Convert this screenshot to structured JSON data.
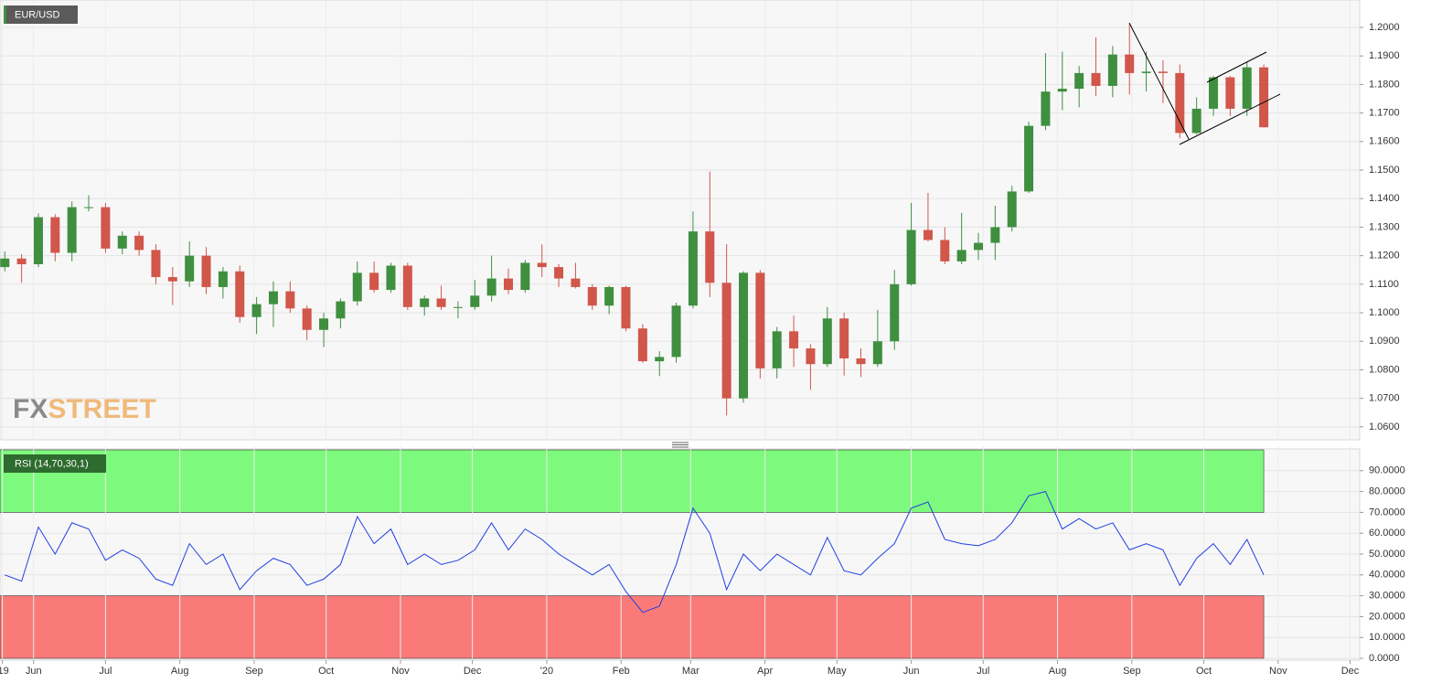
{
  "chart_data": [
    {
      "type": "candlestick",
      "title": "EUR/USD",
      "watermark": [
        "FX",
        "STREET"
      ],
      "x": [
        "2019-05-20",
        "2019-05-27",
        "2019-06-03",
        "2019-06-10",
        "2019-06-17",
        "2019-06-24",
        "2019-07-01",
        "2019-07-08",
        "2019-07-15",
        "2019-07-22",
        "2019-07-29",
        "2019-08-05",
        "2019-08-12",
        "2019-08-19",
        "2019-08-26",
        "2019-09-02",
        "2019-09-09",
        "2019-09-16",
        "2019-09-23",
        "2019-09-30",
        "2019-10-07",
        "2019-10-14",
        "2019-10-21",
        "2019-10-28",
        "2019-11-04",
        "2019-11-11",
        "2019-11-18",
        "2019-11-25",
        "2019-12-02",
        "2019-12-09",
        "2019-12-16",
        "2019-12-23",
        "2019-12-30",
        "2020-01-06",
        "2020-01-13",
        "2020-01-20",
        "2020-01-27",
        "2020-02-03",
        "2020-02-10",
        "2020-02-17",
        "2020-02-24",
        "2020-03-02",
        "2020-03-09",
        "2020-03-16",
        "2020-03-23",
        "2020-03-30",
        "2020-04-06",
        "2020-04-13",
        "2020-04-20",
        "2020-04-27",
        "2020-05-04",
        "2020-05-11",
        "2020-05-18",
        "2020-05-25",
        "2020-06-01",
        "2020-06-08",
        "2020-06-15",
        "2020-06-22",
        "2020-06-29",
        "2020-07-06",
        "2020-07-13",
        "2020-07-20",
        "2020-07-27",
        "2020-08-03",
        "2020-08-10",
        "2020-08-17",
        "2020-08-24",
        "2020-08-31",
        "2020-09-07",
        "2020-09-14",
        "2020-09-21",
        "2020-09-28",
        "2020-10-05",
        "2020-10-12",
        "2020-10-19",
        "2020-10-26"
      ],
      "open": [
        1.116,
        1.119,
        1.117,
        1.1335,
        1.121,
        1.137,
        1.137,
        1.1225,
        1.127,
        1.122,
        1.1125,
        1.111,
        1.12,
        1.109,
        1.1145,
        1.0985,
        1.103,
        1.1075,
        1.1015,
        1.094,
        1.098,
        1.104,
        1.114,
        1.108,
        1.1165,
        1.102,
        1.105,
        1.102,
        1.102,
        1.106,
        1.112,
        1.108,
        1.1175,
        1.116,
        1.112,
        1.109,
        1.1025,
        1.109,
        1.0945,
        1.083,
        1.0845,
        1.1025,
        1.1285,
        1.1105,
        1.07,
        1.114,
        1.0805,
        1.0935,
        1.0875,
        1.082,
        1.098,
        1.084,
        1.082,
        1.09,
        1.11,
        1.129,
        1.1255,
        1.118,
        1.122,
        1.1245,
        1.13,
        1.1425,
        1.1655,
        1.1775,
        1.1785,
        1.184,
        1.1795,
        1.1905,
        1.184,
        1.1845,
        1.184,
        1.163,
        1.1715,
        1.1825,
        1.1715,
        1.186
      ],
      "high": [
        1.1215,
        1.1205,
        1.1348,
        1.1345,
        1.139,
        1.1412,
        1.1385,
        1.1285,
        1.1285,
        1.124,
        1.116,
        1.125,
        1.123,
        1.116,
        1.1165,
        1.1055,
        1.111,
        1.111,
        1.1025,
        1.1,
        1.105,
        1.118,
        1.118,
        1.1175,
        1.1175,
        1.106,
        1.1095,
        1.104,
        1.1115,
        1.12,
        1.1155,
        1.1185,
        1.124,
        1.117,
        1.1175,
        1.11,
        1.1095,
        1.1095,
        1.096,
        1.0865,
        1.1035,
        1.1355,
        1.1495,
        1.124,
        1.1145,
        1.115,
        1.095,
        1.099,
        1.089,
        1.102,
        1.1,
        1.0875,
        1.101,
        1.115,
        1.1385,
        1.142,
        1.13,
        1.135,
        1.128,
        1.1375,
        1.1445,
        1.167,
        1.191,
        1.1915,
        1.1865,
        1.1965,
        1.1935,
        1.2012,
        1.1915,
        1.1885,
        1.187,
        1.1755,
        1.183,
        1.183,
        1.188,
        1.187
      ],
      "low": [
        1.1145,
        1.1105,
        1.116,
        1.118,
        1.118,
        1.1355,
        1.121,
        1.1205,
        1.12,
        1.11,
        1.1027,
        1.109,
        1.1065,
        1.105,
        1.0965,
        1.0925,
        1.095,
        1.1,
        1.0905,
        1.088,
        1.0945,
        1.1025,
        1.107,
        1.107,
        1.101,
        1.099,
        1.101,
        1.098,
        1.101,
        1.104,
        1.1065,
        1.107,
        1.1125,
        1.109,
        1.1085,
        1.101,
        1.0995,
        1.0935,
        1.0825,
        1.0778,
        1.0825,
        1.1015,
        1.1055,
        1.064,
        1.0685,
        1.077,
        1.077,
        1.081,
        1.073,
        1.081,
        1.078,
        1.0775,
        1.081,
        1.087,
        1.1095,
        1.125,
        1.117,
        1.117,
        1.1185,
        1.1185,
        1.1285,
        1.142,
        1.164,
        1.171,
        1.172,
        1.176,
        1.1755,
        1.1765,
        1.1775,
        1.1735,
        1.1612,
        1.1625,
        1.169,
        1.169,
        1.169,
        1.165
      ],
      "close": [
        1.119,
        1.117,
        1.1335,
        1.121,
        1.137,
        1.137,
        1.1225,
        1.127,
        1.122,
        1.1125,
        1.111,
        1.12,
        1.109,
        1.1145,
        1.0985,
        1.103,
        1.1075,
        1.1015,
        1.094,
        1.098,
        1.104,
        1.114,
        1.108,
        1.1165,
        1.102,
        1.105,
        1.102,
        1.102,
        1.106,
        1.112,
        1.108,
        1.1175,
        1.116,
        1.112,
        1.109,
        1.1025,
        1.109,
        1.0945,
        1.083,
        1.0845,
        1.1025,
        1.1285,
        1.1105,
        1.07,
        1.114,
        1.0805,
        1.0935,
        1.0875,
        1.082,
        1.098,
        1.084,
        1.082,
        1.09,
        1.11,
        1.129,
        1.1255,
        1.118,
        1.122,
        1.1245,
        1.13,
        1.1425,
        1.1655,
        1.1775,
        1.1785,
        1.184,
        1.1795,
        1.1905,
        1.184,
        1.1845,
        1.184,
        1.163,
        1.1715,
        1.1825,
        1.1715,
        1.186,
        1.165
      ],
      "up_color": "#3f8f3f",
      "down_color": "#d0574a",
      "xlim": [
        "2019-05-18",
        "2020-12-05"
      ],
      "ylim": [
        1.0558,
        1.208
      ],
      "yticks": [
        {
          "value": 1.06,
          "label": "1.0600"
        },
        {
          "value": 1.07,
          "label": "1.0700"
        },
        {
          "value": 1.08,
          "label": "1.0800"
        },
        {
          "value": 1.09,
          "label": "1.0900"
        },
        {
          "value": 1.1,
          "label": "1.1000"
        },
        {
          "value": 1.11,
          "label": "1.1100"
        },
        {
          "value": 1.12,
          "label": "1.1200"
        },
        {
          "value": 1.13,
          "label": "1.1300"
        },
        {
          "value": 1.14,
          "label": "1.1400"
        },
        {
          "value": 1.15,
          "label": "1.1500"
        },
        {
          "value": 1.16,
          "label": "1.1600"
        },
        {
          "value": 1.17,
          "label": "1.1700"
        },
        {
          "value": 1.18,
          "label": "1.1800"
        },
        {
          "value": 1.19,
          "label": "1.1900"
        },
        {
          "value": 1.2,
          "label": "1.2000"
        }
      ],
      "grid": true
    },
    {
      "type": "line",
      "title": "RSI (14,70,30,1)",
      "x": [
        "2019-05-20",
        "2019-05-27",
        "2019-06-03",
        "2019-06-10",
        "2019-06-17",
        "2019-06-24",
        "2019-07-01",
        "2019-07-08",
        "2019-07-15",
        "2019-07-22",
        "2019-07-29",
        "2019-08-05",
        "2019-08-12",
        "2019-08-19",
        "2019-08-26",
        "2019-09-02",
        "2019-09-09",
        "2019-09-16",
        "2019-09-23",
        "2019-09-30",
        "2019-10-07",
        "2019-10-14",
        "2019-10-21",
        "2019-10-28",
        "2019-11-04",
        "2019-11-11",
        "2019-11-18",
        "2019-11-25",
        "2019-12-02",
        "2019-12-09",
        "2019-12-16",
        "2019-12-23",
        "2019-12-30",
        "2020-01-06",
        "2020-01-13",
        "2020-01-20",
        "2020-01-27",
        "2020-02-03",
        "2020-02-10",
        "2020-02-17",
        "2020-02-24",
        "2020-03-02",
        "2020-03-09",
        "2020-03-16",
        "2020-03-23",
        "2020-03-30",
        "2020-04-06",
        "2020-04-13",
        "2020-04-20",
        "2020-04-27",
        "2020-05-04",
        "2020-05-11",
        "2020-05-18",
        "2020-05-25",
        "2020-06-01",
        "2020-06-08",
        "2020-06-15",
        "2020-06-22",
        "2020-06-29",
        "2020-07-06",
        "2020-07-13",
        "2020-07-20",
        "2020-07-27",
        "2020-08-03",
        "2020-08-10",
        "2020-08-17",
        "2020-08-24",
        "2020-08-31",
        "2020-09-07",
        "2020-09-14",
        "2020-09-21",
        "2020-09-28",
        "2020-10-05",
        "2020-10-12",
        "2020-10-19",
        "2020-10-26"
      ],
      "values": [
        40,
        37,
        63,
        50,
        65,
        62,
        47,
        52,
        48,
        38,
        35,
        55,
        45,
        50,
        33,
        42,
        48,
        45,
        35,
        38,
        45,
        68,
        55,
        62,
        45,
        50,
        45,
        47,
        52,
        65,
        52,
        62,
        57,
        50,
        45,
        40,
        45,
        32,
        22,
        25,
        45,
        72,
        60,
        33,
        50,
        42,
        50,
        45,
        40,
        58,
        42,
        40,
        48,
        55,
        72,
        75,
        57,
        55,
        54,
        57,
        65,
        78,
        80,
        62,
        67,
        62,
        65,
        52,
        55,
        52,
        35,
        48,
        55,
        45,
        57,
        40
      ],
      "color": "#1f3fe0",
      "overbought": 70,
      "oversold": 30,
      "overbought_color": "#7dfa7d",
      "oversold_color": "#fa7a7a",
      "xlim": [
        "2019-05-18",
        "2020-12-05"
      ],
      "xticks": [
        {
          "value": "2019-05-19",
          "label": "'19"
        },
        {
          "value": "2019-06-01",
          "label": "Jun"
        },
        {
          "value": "2019-07-01",
          "label": "Jul"
        },
        {
          "value": "2019-08-01",
          "label": "Aug"
        },
        {
          "value": "2019-09-01",
          "label": "Sep"
        },
        {
          "value": "2019-10-01",
          "label": "Oct"
        },
        {
          "value": "2019-11-01",
          "label": "Nov"
        },
        {
          "value": "2019-12-01",
          "label": "Dec"
        },
        {
          "value": "2020-01-01",
          "label": "'20"
        },
        {
          "value": "2020-02-01",
          "label": "Feb"
        },
        {
          "value": "2020-03-01",
          "label": "Mar"
        },
        {
          "value": "2020-04-01",
          "label": "Apr"
        },
        {
          "value": "2020-05-01",
          "label": "May"
        },
        {
          "value": "2020-06-01",
          "label": "Jun"
        },
        {
          "value": "2020-07-01",
          "label": "Jul"
        },
        {
          "value": "2020-08-01",
          "label": "Aug"
        },
        {
          "value": "2020-09-01",
          "label": "Sep"
        },
        {
          "value": "2020-10-01",
          "label": "Oct"
        },
        {
          "value": "2020-11-01",
          "label": "Nov"
        },
        {
          "value": "2020-12-01",
          "label": "Dec"
        }
      ],
      "ylim": [
        0,
        100
      ],
      "yticks": [
        {
          "value": 0,
          "label": "0.0000"
        },
        {
          "value": 10,
          "label": "10.0000"
        },
        {
          "value": 20,
          "label": "20.0000"
        },
        {
          "value": 30,
          "label": "30.0000"
        },
        {
          "value": 40,
          "label": "40.0000"
        },
        {
          "value": 50,
          "label": "50.0000"
        },
        {
          "value": 60,
          "label": "60.0000"
        },
        {
          "value": 70,
          "label": "70.0000"
        },
        {
          "value": 80,
          "label": "80.0000"
        },
        {
          "value": 90,
          "label": "90.0000"
        }
      ],
      "grid": true
    }
  ]
}
